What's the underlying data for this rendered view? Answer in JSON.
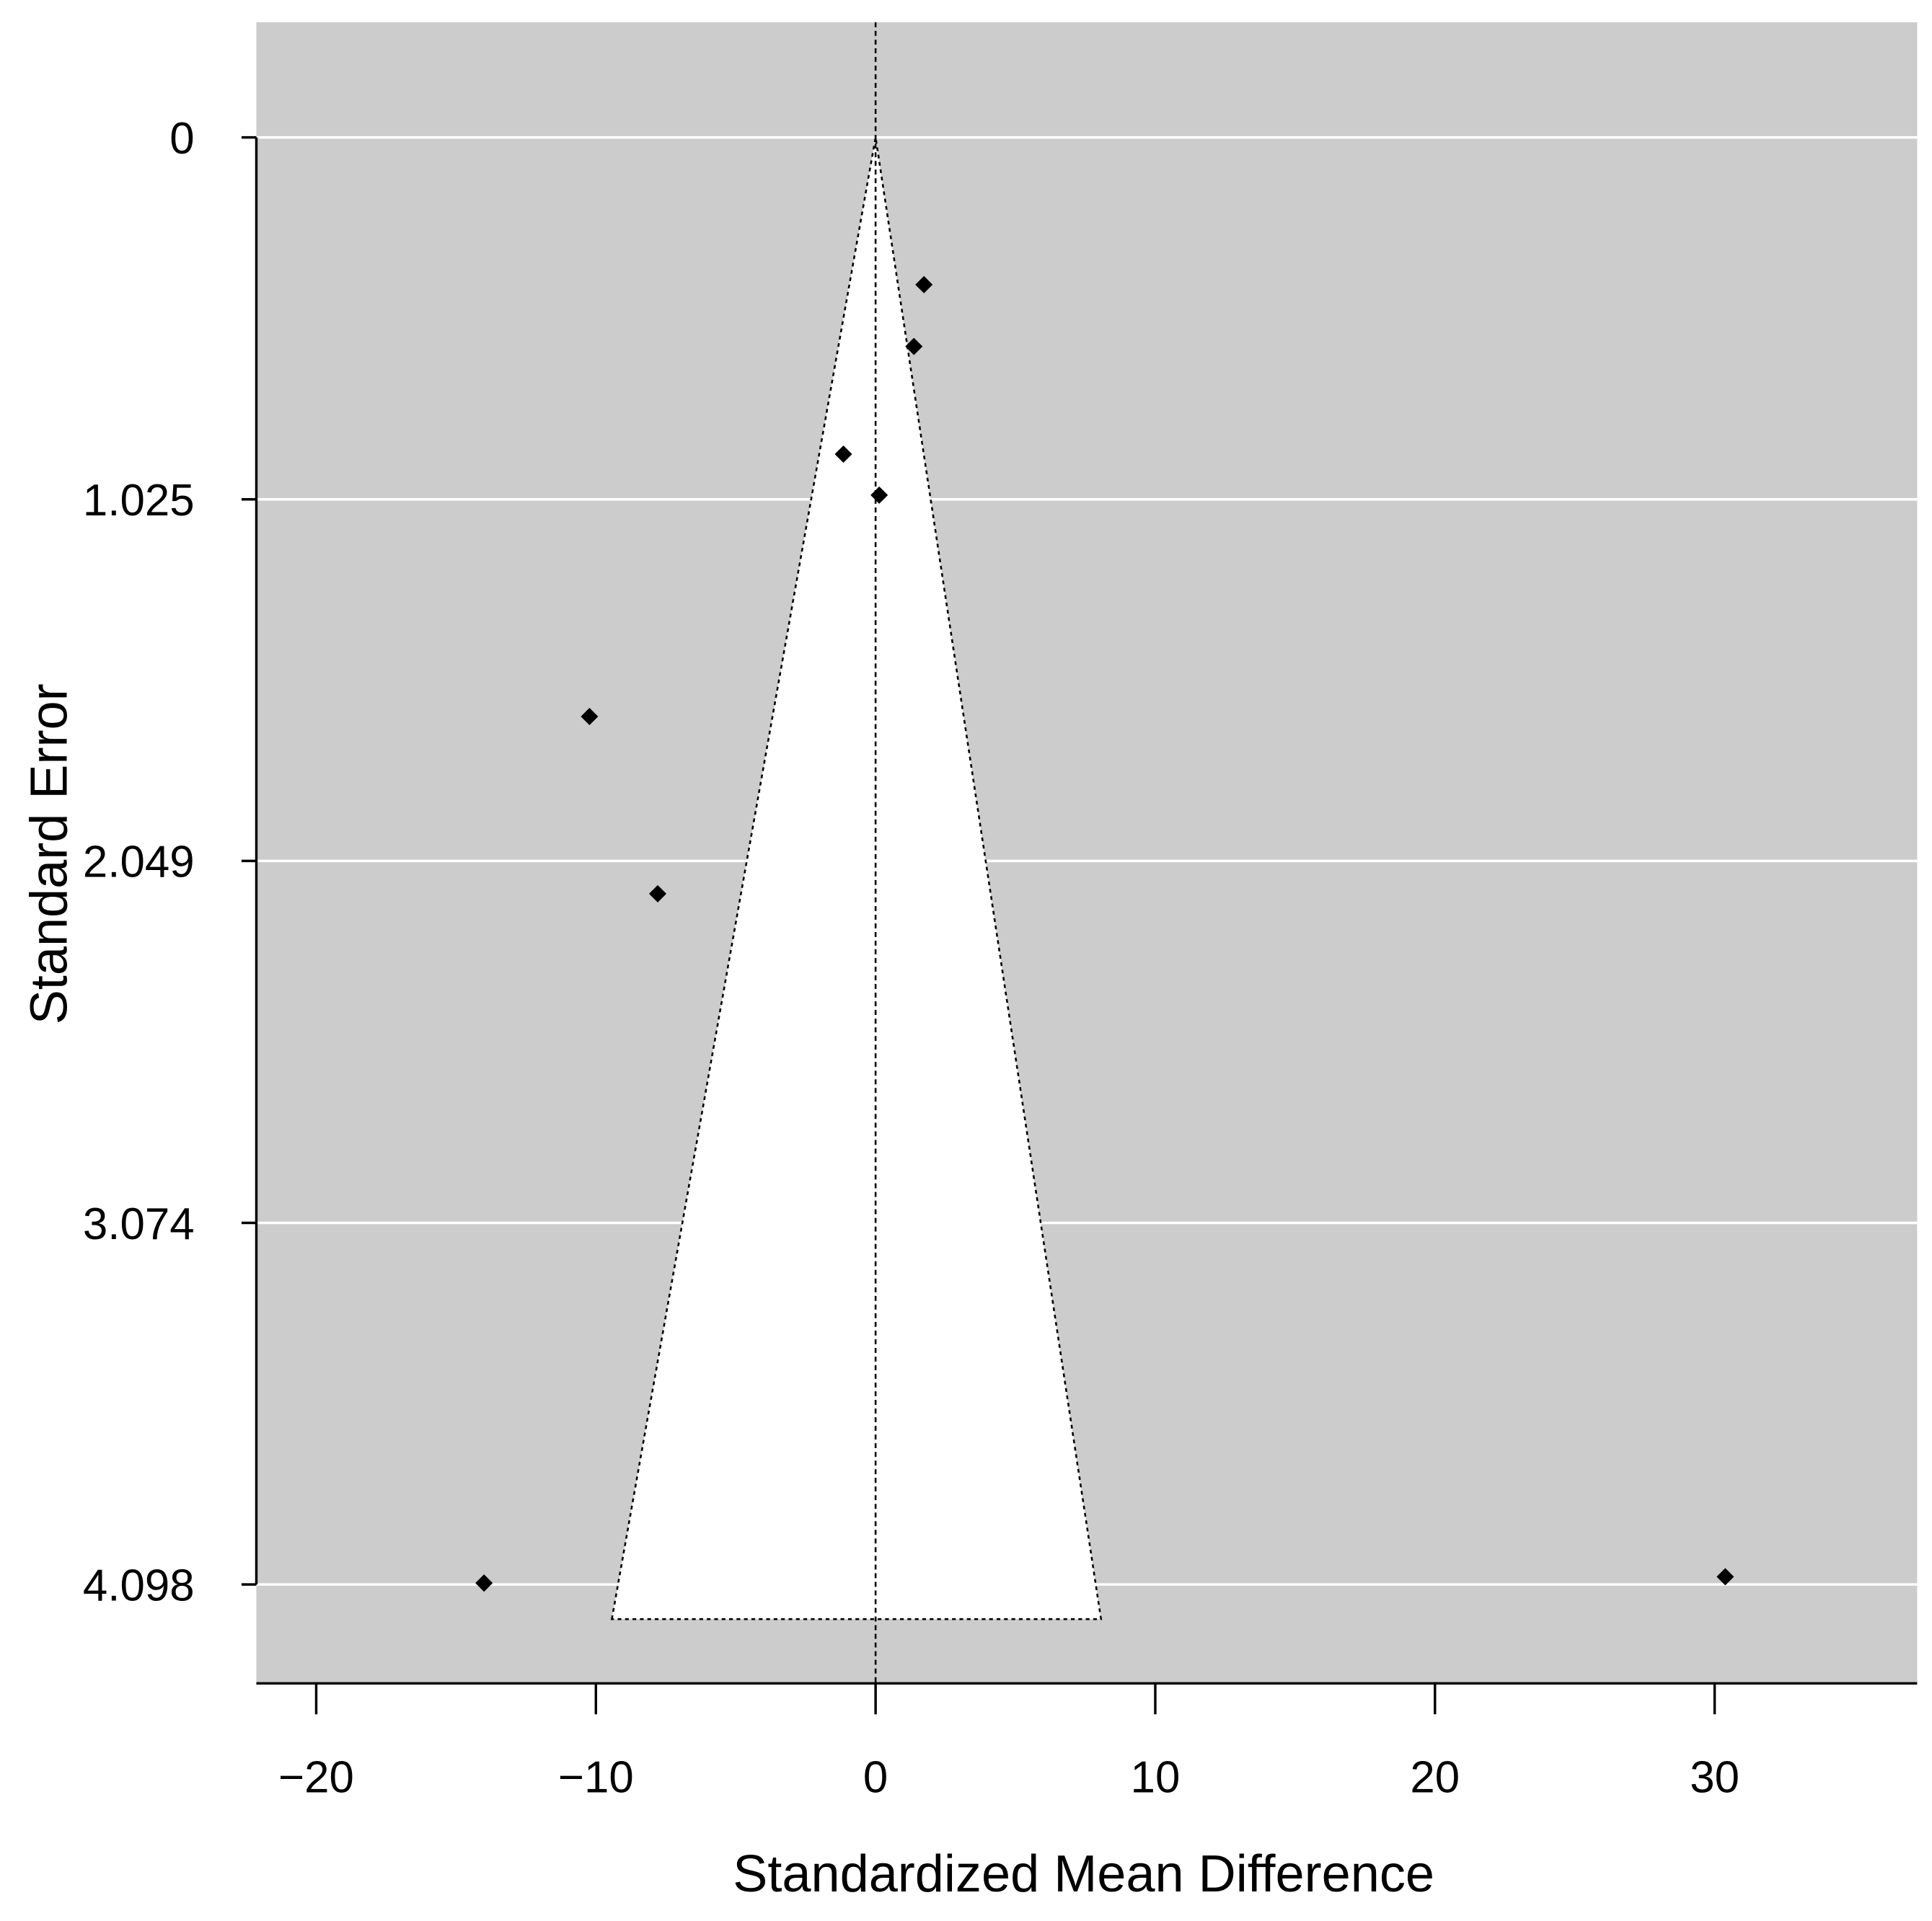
{
  "chart_data": {
    "type": "funnel-scatter",
    "x_label": "Standardized Mean Difference",
    "y_label": "Standard Error",
    "x": [
      1.73,
      1.37,
      -1.15,
      0.13,
      -10.23,
      -7.79,
      -14.0,
      30.38
    ],
    "values": [
      0.417,
      0.592,
      0.897,
      1.013,
      1.64,
      2.142,
      4.094,
      4.076
    ],
    "color": "#000000",
    "xlim": [
      -22.14,
      37.24
    ],
    "ylim": [
      4.378,
      -0.326
    ],
    "xticks": [
      {
        "value": -20,
        "label": "−20"
      },
      {
        "value": -10,
        "label": "−10"
      },
      0,
      10,
      20,
      30
    ],
    "yticks": [
      0,
      1.025,
      2.049,
      3.074,
      4.098
    ],
    "grid": true,
    "background": "#cccccc",
    "reference_line": 0,
    "funnel": {
      "x": [
        -9.43,
        0,
        8.06
      ],
      "y": [
        4.196,
        0,
        4.196
      ]
    }
  }
}
